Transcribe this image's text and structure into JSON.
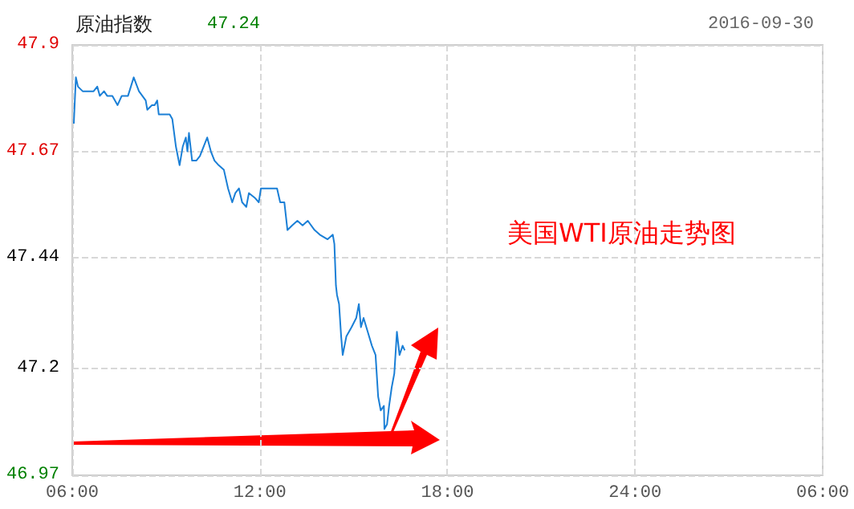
{
  "chart_data": {
    "type": "line",
    "title": "原油指数",
    "subtitle": "47.24",
    "annotations": [
      "2016-09-30",
      "美国WTI原油走势图"
    ],
    "x": [
      "2016-09-30T06:03",
      "2016-09-30T06:07",
      "2016-09-30T06:11",
      "2016-09-30T06:20",
      "2016-09-30T06:41",
      "2016-09-30T06:48",
      "2016-09-30T06:53",
      "2016-09-30T07:01",
      "2016-09-30T07:07",
      "2016-09-30T07:17",
      "2016-09-30T07:27",
      "2016-09-30T07:35",
      "2016-09-30T07:47",
      "2016-09-30T07:58",
      "2016-09-30T08:08",
      "2016-09-30T08:21",
      "2016-09-30T08:24",
      "2016-09-30T08:33",
      "2016-09-30T08:38",
      "2016-09-30T08:43",
      "2016-09-30T08:46",
      "2016-09-30T09:07",
      "2016-09-30T09:12",
      "2016-09-30T09:19",
      "2016-09-30T09:26",
      "2016-09-30T09:32",
      "2016-09-30T09:38",
      "2016-09-30T09:41",
      "2016-09-30T09:44",
      "2016-09-30T09:50",
      "2016-09-30T09:58",
      "2016-09-30T10:05",
      "2016-09-30T10:19",
      "2016-09-30T10:26",
      "2016-09-30T10:33",
      "2016-09-30T10:41",
      "2016-09-30T10:51",
      "2016-09-30T10:59",
      "2016-09-30T11:07",
      "2016-09-30T11:13",
      "2016-09-30T11:20",
      "2016-09-30T11:26",
      "2016-09-30T11:34",
      "2016-09-30T11:39",
      "2016-09-30T11:50",
      "2016-09-30T11:58",
      "2016-09-30T12:02",
      "2016-09-30T12:33",
      "2016-09-30T12:39",
      "2016-09-30T12:47",
      "2016-09-30T12:53",
      "2016-09-30T13:02",
      "2016-09-30T13:12",
      "2016-09-30T13:22",
      "2016-09-30T13:32",
      "2016-09-30T13:45",
      "2016-09-30T13:55",
      "2016-09-30T14:10",
      "2016-09-30T14:20",
      "2016-09-30T14:23",
      "2016-09-30T14:26",
      "2016-09-30T14:28",
      "2016-09-30T14:32",
      "2016-09-30T14:36",
      "2016-09-30T14:39",
      "2016-09-30T14:46",
      "2016-09-30T14:56",
      "2016-09-30T15:05",
      "2016-09-30T15:10",
      "2016-09-30T15:14",
      "2016-09-30T15:19",
      "2016-09-30T15:27",
      "2016-09-30T15:35",
      "2016-09-30T15:42",
      "2016-09-30T15:47",
      "2016-09-30T15:52",
      "2016-09-30T15:58",
      "2016-09-30T15:59",
      "2016-09-30T16:04",
      "2016-09-30T16:08",
      "2016-09-30T16:13",
      "2016-09-30T16:18",
      "2016-09-30T16:23",
      "2016-09-30T16:28",
      "2016-09-30T16:34",
      "2016-09-30T16:38"
    ],
    "series": [
      {
        "color": "#1a7fd6",
        "values": [
          47.73,
          47.83,
          47.81,
          47.8,
          47.8,
          47.81,
          47.79,
          47.8,
          47.79,
          47.79,
          47.77,
          47.79,
          47.79,
          47.83,
          47.8,
          47.78,
          47.76,
          47.77,
          47.77,
          47.78,
          47.75,
          47.75,
          47.74,
          47.68,
          47.64,
          47.68,
          47.7,
          47.67,
          47.71,
          47.65,
          47.65,
          47.66,
          47.7,
          47.67,
          47.65,
          47.64,
          47.63,
          47.59,
          47.56,
          47.58,
          47.59,
          47.56,
          47.55,
          47.58,
          47.57,
          47.56,
          47.59,
          47.59,
          47.56,
          47.56,
          47.5,
          47.51,
          47.52,
          47.51,
          47.52,
          47.5,
          47.49,
          47.48,
          47.49,
          47.47,
          47.38,
          47.36,
          47.34,
          47.27,
          47.23,
          47.27,
          47.29,
          47.31,
          47.34,
          47.29,
          47.31,
          47.28,
          47.25,
          47.23,
          47.14,
          47.11,
          47.12,
          47.07,
          47.08,
          47.12,
          47.16,
          47.19,
          47.28,
          47.23,
          47.25,
          47.24
        ]
      }
    ],
    "xlim": [
      "2016-09-30T06:00",
      "2016-10-01T06:00"
    ],
    "xticks": [
      {
        "value": "2016-09-30T06:00",
        "label": "06:00"
      },
      {
        "value": "2016-09-30T12:00",
        "label": "12:00"
      },
      {
        "value": "2016-09-30T18:00",
        "label": "18:00"
      },
      {
        "value": "2016-10-01T00:00",
        "label": "24:00"
      },
      {
        "value": "2016-10-01T06:00",
        "label": "06:00"
      }
    ],
    "ylim": [
      46.97,
      47.9
    ],
    "yticks": [
      46.97,
      47.2,
      47.44,
      47.67,
      47.9
    ],
    "grid": true,
    "marker": "none",
    "line_style": "solid"
  }
}
